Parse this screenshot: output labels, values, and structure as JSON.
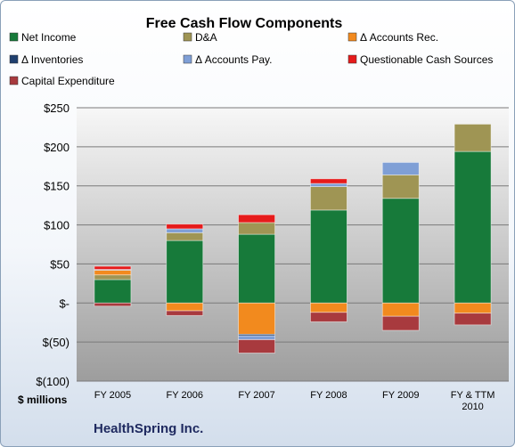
{
  "chart_data": {
    "type": "bar",
    "stacked": true,
    "title": "Free Cash Flow Components",
    "ylabel": "$ millions",
    "footer": "HealthSpring Inc.",
    "ylim": [
      -100,
      250
    ],
    "yticks": [
      {
        "value": 250,
        "label": "$250"
      },
      {
        "value": 200,
        "label": "$200"
      },
      {
        "value": 150,
        "label": "$150"
      },
      {
        "value": 100,
        "label": "$100"
      },
      {
        "value": 50,
        "label": "$50"
      },
      {
        "value": 0,
        "label": "$-"
      },
      {
        "value": -50,
        "label": "$(50)"
      },
      {
        "value": -100,
        "label": "$(100)"
      }
    ],
    "categories": [
      "FY 2005",
      "FY 2006",
      "FY 2007",
      "FY 2008",
      "FY 2009",
      "FY & TTM 2010"
    ],
    "grid": true,
    "legend_position": "top",
    "series": [
      {
        "name": "Net Income",
        "color": "#177a3a",
        "values": [
          30,
          80,
          88,
          119,
          134,
          194
        ]
      },
      {
        "name": "D&A",
        "color": "#9f9554",
        "values": [
          6,
          10,
          15,
          30,
          30,
          35
        ]
      },
      {
        "name": "Δ Accounts Rec.",
        "color": "#f28a1e",
        "values": [
          6,
          -10,
          -40,
          -12,
          -17,
          -13
        ]
      },
      {
        "name": "Δ Inventories",
        "color": "#1f3f6e",
        "values": [
          0,
          0,
          -2,
          0,
          0,
          0
        ]
      },
      {
        "name": "Δ Accounts Pay.",
        "color": "#7f9fd6",
        "values": [
          1,
          5,
          -5,
          4,
          16,
          0
        ]
      },
      {
        "name": "Questionable Cash Sources",
        "color": "#e61b1b",
        "values": [
          4,
          6,
          10,
          6,
          0,
          0
        ]
      },
      {
        "name": "Capital Expenditure",
        "color": "#a83a3e",
        "values": [
          -4,
          -6,
          -17,
          -12,
          -18,
          -15
        ]
      }
    ]
  }
}
